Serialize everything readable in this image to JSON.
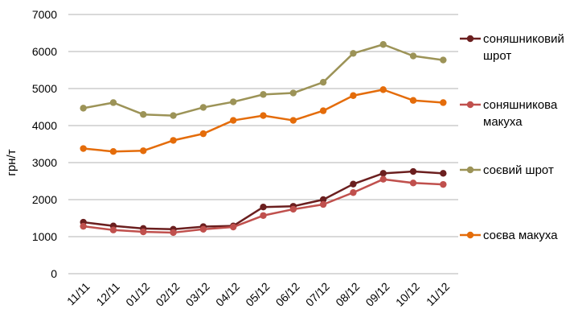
{
  "chart_data": {
    "type": "line",
    "categories": [
      "11/11",
      "12/11",
      "01/12",
      "02/12",
      "03/12",
      "04/12",
      "05/12",
      "06/12",
      "07/12",
      "08/12",
      "09/12",
      "10/12",
      "11/12"
    ],
    "ylabel": "грн/т",
    "ylim": [
      0,
      7000
    ],
    "yticks": [
      0,
      1000,
      2000,
      3000,
      4000,
      5000,
      6000,
      7000
    ],
    "grid": "horizontal",
    "legend_position": "right",
    "series": [
      {
        "name": "соняшниковий шрот",
        "color": "#6b1f1f",
        "values": [
          1390,
          1290,
          1220,
          1200,
          1270,
          1290,
          1800,
          1820,
          2000,
          2420,
          2710,
          2760,
          2710
        ]
      },
      {
        "name": "соняшникова макуха",
        "color": "#c0504d",
        "values": [
          1280,
          1180,
          1130,
          1110,
          1200,
          1260,
          1570,
          1740,
          1870,
          2190,
          2550,
          2450,
          2410
        ]
      },
      {
        "name": "соєвий шрот",
        "color": "#9c9357",
        "values": [
          4470,
          4620,
          4300,
          4270,
          4490,
          4640,
          4840,
          4880,
          5170,
          5950,
          6190,
          5880,
          5770
        ]
      },
      {
        "name": "соєва макуха",
        "color": "#e46c0a",
        "values": [
          3380,
          3300,
          3320,
          3600,
          3780,
          4140,
          4270,
          4140,
          4400,
          4810,
          4970,
          4680,
          4620
        ]
      }
    ],
    "legend": [
      {
        "lines": [
          "соняшниковий",
          "шрот"
        ]
      },
      {
        "lines": [
          "соняшникова",
          "макуха"
        ]
      },
      {
        "lines": [
          "соєвий шрот"
        ]
      },
      {
        "lines": [
          "соєва макуха"
        ]
      }
    ]
  }
}
